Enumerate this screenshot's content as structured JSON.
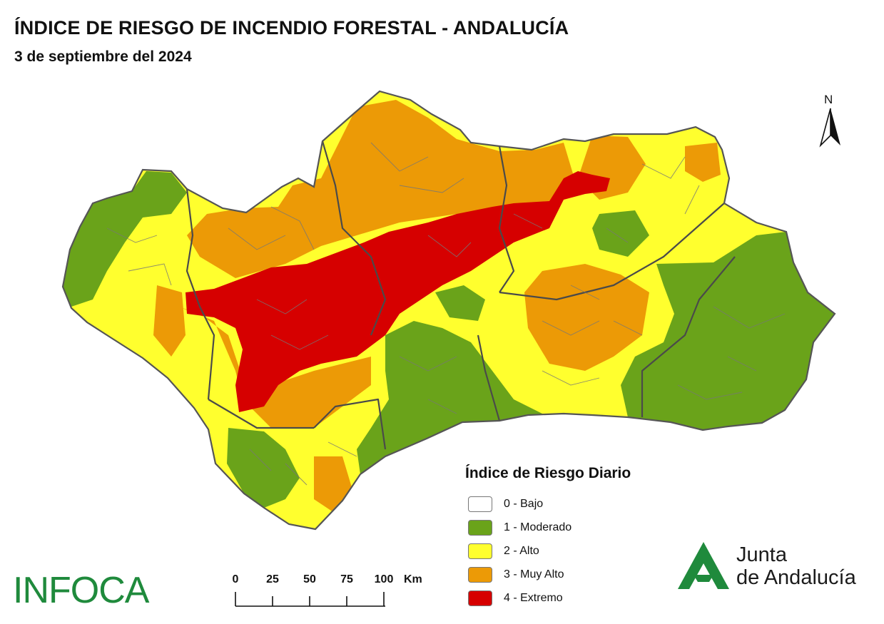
{
  "header": {
    "title": "ÍNDICE DE RIESGO DE INCENDIO FORESTAL - ANDALUCÍA",
    "subtitle": "3 de septiembre del 2024"
  },
  "north_arrow": {
    "label": "N"
  },
  "legend": {
    "title": "Índice de Riesgo Diario",
    "items": [
      {
        "label": "0 - Bajo",
        "color": "#ffffff"
      },
      {
        "label": "1 - Moderado",
        "color": "#6aa31a"
      },
      {
        "label": "2 - Alto",
        "color": "#ffff2e"
      },
      {
        "label": "3 - Muy Alto",
        "color": "#ec9a06"
      },
      {
        "label": "4 - Extremo",
        "color": "#d60000"
      }
    ]
  },
  "scale_bar": {
    "ticks": [
      "0",
      "25",
      "50",
      "75",
      "100"
    ],
    "unit": "Km"
  },
  "logos": {
    "infoca": "INFOCA",
    "junta_line1": "Junta",
    "junta_line2": "de Andalucía"
  },
  "colors": {
    "border": "#666666",
    "province_border": "#333333",
    "infoca_green": "#1f8a3c",
    "junta_green": "#1f8a3c"
  }
}
